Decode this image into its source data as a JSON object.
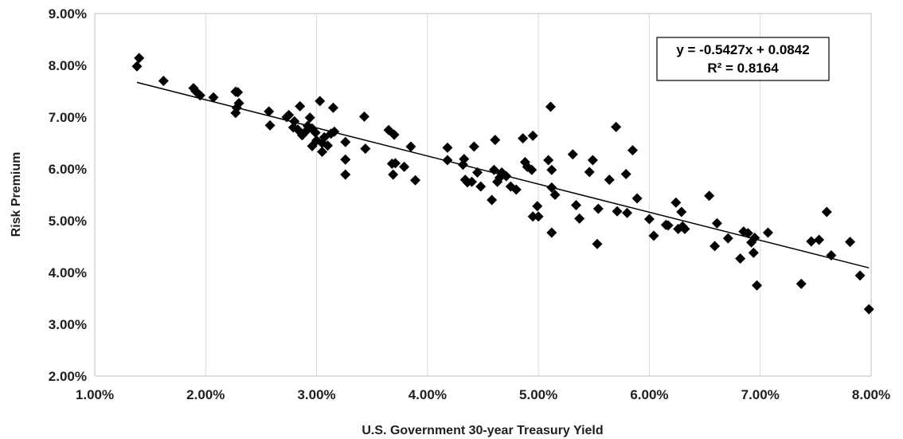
{
  "chart_data": {
    "type": "scatter",
    "xlabel": "U.S. Government 30-year Treasury Yield",
    "ylabel": "Risk Premium",
    "xlim": [
      0.01,
      0.08
    ],
    "ylim": [
      0.02,
      0.09
    ],
    "x_ticks": [
      0.01,
      0.02,
      0.03,
      0.04,
      0.05,
      0.06,
      0.07,
      0.08
    ],
    "x_tick_labels": [
      "1.00%",
      "2.00%",
      "3.00%",
      "4.00%",
      "5.00%",
      "6.00%",
      "7.00%",
      "8.00%"
    ],
    "y_ticks": [
      0.02,
      0.03,
      0.04,
      0.05,
      0.06,
      0.07,
      0.08,
      0.09
    ],
    "y_tick_labels": [
      "2.00%",
      "3.00%",
      "4.00%",
      "5.00%",
      "6.00%",
      "7.00%",
      "8.00%",
      "9.00%"
    ],
    "grid": "vertical",
    "marker": "diamond",
    "marker_color": "#000000",
    "trendline": {
      "slope": -0.5427,
      "intercept": 0.0842,
      "x_range": [
        0.0138,
        0.0798
      ],
      "color": "#000000"
    },
    "annotation": {
      "equation": "y = -0.5427x + 0.0842",
      "r_squared": "R² = 0.8164",
      "placement": "top-right"
    },
    "series": [
      {
        "points": [
          [
            0.0138,
            0.0798
          ],
          [
            0.014,
            0.0814
          ],
          [
            0.0162,
            0.077
          ],
          [
            0.0189,
            0.0756
          ],
          [
            0.0191,
            0.075
          ],
          [
            0.0195,
            0.0742
          ],
          [
            0.0207,
            0.0738
          ],
          [
            0.0227,
            0.0749
          ],
          [
            0.0229,
            0.0748
          ],
          [
            0.0227,
            0.0708
          ],
          [
            0.0228,
            0.0718
          ],
          [
            0.023,
            0.0727
          ],
          [
            0.0257,
            0.0711
          ],
          [
            0.0258,
            0.0684
          ],
          [
            0.0273,
            0.07
          ],
          [
            0.0275,
            0.0704
          ],
          [
            0.0279,
            0.068
          ],
          [
            0.028,
            0.0692
          ],
          [
            0.0283,
            0.0676
          ],
          [
            0.0285,
            0.0721
          ],
          [
            0.0287,
            0.0665
          ],
          [
            0.029,
            0.0672
          ],
          [
            0.0292,
            0.0683
          ],
          [
            0.0294,
            0.0699
          ],
          [
            0.0296,
            0.0644
          ],
          [
            0.0296,
            0.0678
          ],
          [
            0.0299,
            0.067
          ],
          [
            0.03,
            0.0655
          ],
          [
            0.0303,
            0.0731
          ],
          [
            0.0305,
            0.0633
          ],
          [
            0.0305,
            0.065
          ],
          [
            0.0307,
            0.0661
          ],
          [
            0.031,
            0.0645
          ],
          [
            0.0313,
            0.0668
          ],
          [
            0.0315,
            0.0718
          ],
          [
            0.0316,
            0.0672
          ],
          [
            0.0326,
            0.0652
          ],
          [
            0.0326,
            0.0618
          ],
          [
            0.0326,
            0.0589
          ],
          [
            0.0343,
            0.0701
          ],
          [
            0.0344,
            0.0639
          ],
          [
            0.0365,
            0.0675
          ],
          [
            0.0368,
            0.061
          ],
          [
            0.0369,
            0.0589
          ],
          [
            0.037,
            0.0666
          ],
          [
            0.0371,
            0.0611
          ],
          [
            0.0379,
            0.0604
          ],
          [
            0.0385,
            0.0643
          ],
          [
            0.0389,
            0.0578
          ],
          [
            0.0418,
            0.0641
          ],
          [
            0.0418,
            0.0617
          ],
          [
            0.0432,
            0.0608
          ],
          [
            0.0433,
            0.0619
          ],
          [
            0.0434,
            0.0579
          ],
          [
            0.0436,
            0.0574
          ],
          [
            0.044,
            0.0575
          ],
          [
            0.0442,
            0.0643
          ],
          [
            0.0445,
            0.0593
          ],
          [
            0.0448,
            0.0566
          ],
          [
            0.0458,
            0.054
          ],
          [
            0.046,
            0.0598
          ],
          [
            0.0461,
            0.0656
          ],
          [
            0.0463,
            0.0575
          ],
          [
            0.0465,
            0.0583
          ],
          [
            0.0467,
            0.0593
          ],
          [
            0.0471,
            0.0586
          ],
          [
            0.0475,
            0.0566
          ],
          [
            0.048,
            0.056
          ],
          [
            0.0486,
            0.0659
          ],
          [
            0.0488,
            0.0613
          ],
          [
            0.049,
            0.0604
          ],
          [
            0.0494,
            0.0598
          ],
          [
            0.0495,
            0.0664
          ],
          [
            0.0495,
            0.0508
          ],
          [
            0.0499,
            0.0528
          ],
          [
            0.05,
            0.0508
          ],
          [
            0.0509,
            0.0617
          ],
          [
            0.0511,
            0.072
          ],
          [
            0.0512,
            0.0598
          ],
          [
            0.0512,
            0.0564
          ],
          [
            0.0512,
            0.0477
          ],
          [
            0.0515,
            0.055
          ],
          [
            0.0531,
            0.0628
          ],
          [
            0.0534,
            0.053
          ],
          [
            0.0537,
            0.0504
          ],
          [
            0.0546,
            0.0594
          ],
          [
            0.0549,
            0.0617
          ],
          [
            0.0553,
            0.0455
          ],
          [
            0.0554,
            0.0523
          ],
          [
            0.0564,
            0.0579
          ],
          [
            0.057,
            0.0681
          ],
          [
            0.0571,
            0.0518
          ],
          [
            0.0579,
            0.059
          ],
          [
            0.058,
            0.0515
          ],
          [
            0.0585,
            0.0636
          ],
          [
            0.0589,
            0.0543
          ],
          [
            0.06,
            0.0503
          ],
          [
            0.0604,
            0.0471
          ],
          [
            0.0615,
            0.0492
          ],
          [
            0.0617,
            0.0491
          ],
          [
            0.0624,
            0.0535
          ],
          [
            0.0626,
            0.0484
          ],
          [
            0.0629,
            0.0517
          ],
          [
            0.063,
            0.0489
          ],
          [
            0.0632,
            0.0484
          ],
          [
            0.0654,
            0.0548
          ],
          [
            0.0659,
            0.0451
          ],
          [
            0.0661,
            0.0495
          ],
          [
            0.0671,
            0.0466
          ],
          [
            0.0682,
            0.0427
          ],
          [
            0.0685,
            0.0479
          ],
          [
            0.0689,
            0.0476
          ],
          [
            0.0692,
            0.0458
          ],
          [
            0.0694,
            0.0438
          ],
          [
            0.0695,
            0.0467
          ],
          [
            0.0697,
            0.0375
          ],
          [
            0.0707,
            0.0477
          ],
          [
            0.0737,
            0.0378
          ],
          [
            0.0746,
            0.046
          ],
          [
            0.0753,
            0.0463
          ],
          [
            0.076,
            0.0517
          ],
          [
            0.0764,
            0.0433
          ],
          [
            0.0781,
            0.0459
          ],
          [
            0.079,
            0.0394
          ],
          [
            0.0798,
            0.0329
          ]
        ]
      }
    ]
  }
}
